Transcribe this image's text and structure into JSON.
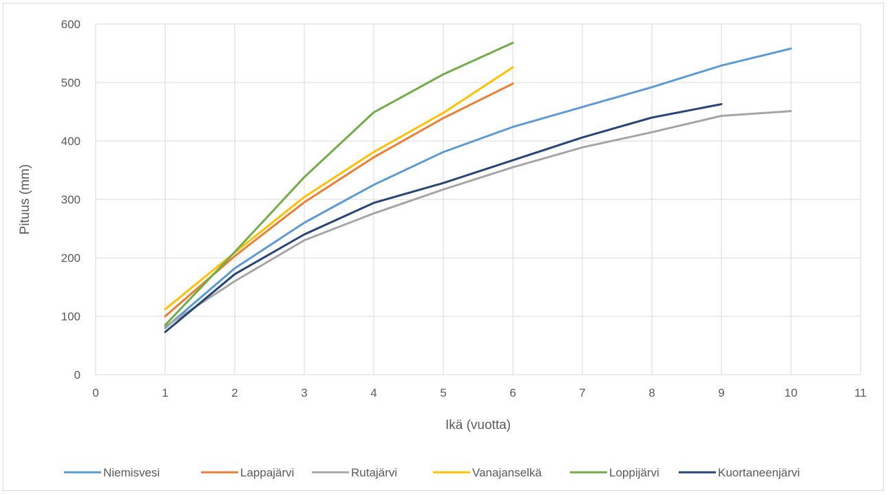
{
  "chart_data": {
    "type": "line",
    "title": "",
    "xlabel": "Ikä (vuotta)",
    "ylabel": "Pituus (mm)",
    "xlim": [
      0,
      11
    ],
    "ylim": [
      0,
      600
    ],
    "xticks": [
      0,
      1,
      2,
      3,
      4,
      5,
      6,
      7,
      8,
      9,
      10,
      11
    ],
    "yticks": [
      0,
      100,
      200,
      300,
      400,
      500,
      600
    ],
    "grid": true,
    "legend_position": "bottom",
    "series": [
      {
        "name": "Niemisvesi",
        "color": "#5b9bd5",
        "x": [
          1,
          2,
          3,
          4,
          5,
          6,
          7,
          8,
          9,
          10
        ],
        "y": [
          80,
          182,
          260,
          325,
          381,
          424,
          458,
          492,
          529,
          558
        ]
      },
      {
        "name": "Lappajärvi",
        "color": "#ed7d31",
        "x": [
          1,
          2,
          3,
          4,
          5,
          6
        ],
        "y": [
          100,
          203,
          295,
          372,
          439,
          498
        ]
      },
      {
        "name": "Rutajärvi",
        "color": "#a5a5a5",
        "x": [
          1,
          2,
          3,
          4,
          5,
          6,
          7,
          8,
          9,
          10
        ],
        "y": [
          82,
          160,
          230,
          276,
          317,
          355,
          389,
          415,
          443,
          451
        ]
      },
      {
        "name": "Vanajanselkä",
        "color": "#ffc000",
        "x": [
          1,
          2,
          3,
          4,
          5,
          6
        ],
        "y": [
          112,
          209,
          304,
          381,
          448,
          526
        ]
      },
      {
        "name": "Loppijärvi",
        "color": "#70ad47",
        "x": [
          1,
          2,
          3,
          4,
          5,
          6
        ],
        "y": [
          85,
          210,
          338,
          449,
          514,
          568
        ]
      },
      {
        "name": "Kuortaneenjärvi",
        "color": "#264478",
        "x": [
          1,
          2,
          3,
          4,
          5,
          6,
          7,
          8,
          9
        ],
        "y": [
          73,
          172,
          240,
          294,
          328,
          367,
          406,
          440,
          463
        ]
      }
    ]
  }
}
